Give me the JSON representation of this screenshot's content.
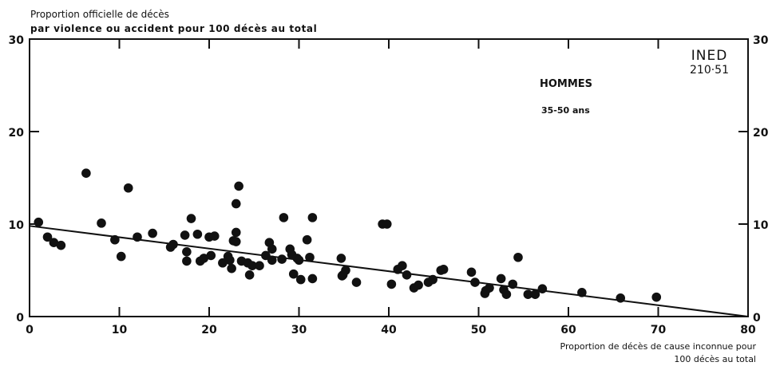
{
  "chart_data": {
    "type": "scatter",
    "ylabel": [
      "Proportion officielle de décès",
      "par violence ou accident pour 100 décès au total"
    ],
    "xlabel": [
      "Proportion de décès de cause inconnue pour",
      "100 décès au total"
    ],
    "annotations": [
      "HOMMES",
      "35-50 ans"
    ],
    "xlim": [
      0,
      80
    ],
    "ylim": [
      0,
      30
    ],
    "x_ticks": [
      "0",
      "10",
      "20",
      "30",
      "40",
      "50",
      "60",
      "70",
      "80"
    ],
    "y_ticks": [
      "0",
      "10",
      "20",
      "30"
    ],
    "y_ticks_right": [
      "0",
      "10",
      "20",
      "30"
    ],
    "regression_line": {
      "x": [
        0,
        80
      ],
      "y": [
        9.8,
        0
      ]
    },
    "x": [
      1,
      6.3,
      11,
      23,
      23.3,
      22.7,
      18,
      28.3,
      31.5,
      39.3,
      8,
      2,
      2.7,
      3.5,
      9.5,
      10.2,
      12,
      13.7,
      15.7,
      16,
      17.3,
      17.5,
      17.5,
      18.7,
      19,
      19.4,
      20,
      20.2,
      20.6,
      21.5,
      22.1,
      22.3,
      22.5,
      23,
      23,
      23.6,
      24.3,
      24.5,
      24.8,
      25.6,
      26.3,
      26.7,
      27,
      27,
      28.1,
      29,
      29.2,
      29.4,
      29.8,
      30,
      30.2,
      30.9,
      31.2,
      31.5,
      34.7,
      34.8,
      35.2,
      34.9,
      36.4,
      39.8,
      40.3,
      41,
      41.5,
      42,
      42.8,
      43.3,
      44.4,
      44.9,
      45.8,
      46.1,
      49.2,
      49.6,
      50.7,
      50.8,
      51.2,
      52.5,
      52.8,
      53.1,
      53.8,
      54.4,
      55.5,
      56.3,
      57.1,
      61.5,
      65.8,
      69.8
    ],
    "y": [
      10.2,
      15.5,
      13.9,
      12.2,
      14.1,
      8.2,
      10.6,
      10.7,
      10.7,
      10,
      10.1,
      8.6,
      8,
      7.7,
      8.3,
      6.5,
      8.6,
      9,
      7.5,
      7.8,
      8.8,
      7,
      6,
      8.9,
      6,
      6.3,
      8.6,
      6.6,
      8.7,
      5.8,
      6.5,
      6.1,
      5.2,
      9.1,
      8.1,
      6,
      5.8,
      4.5,
      5.5,
      5.5,
      6.6,
      8,
      7.3,
      6.1,
      6.2,
      7.3,
      6.7,
      4.6,
      6.3,
      6.1,
      4,
      8.3,
      6.4,
      4.1,
      6.3,
      4.4,
      5,
      4.5,
      3.7,
      10,
      3.5,
      5.1,
      5.5,
      4.5,
      3.1,
      3.4,
      3.7,
      4,
      5,
      5.1,
      4.8,
      3.7,
      2.5,
      2.8,
      3.1,
      4.1,
      2.9,
      2.4,
      3.5,
      6.4,
      2.4,
      2.4,
      3,
      2.6,
      2,
      2.1
    ]
  },
  "logo": {
    "line1": "INED",
    "line2": "210·51"
  },
  "colors": {
    "ink": "#111111",
    "background": "#ffffff"
  }
}
